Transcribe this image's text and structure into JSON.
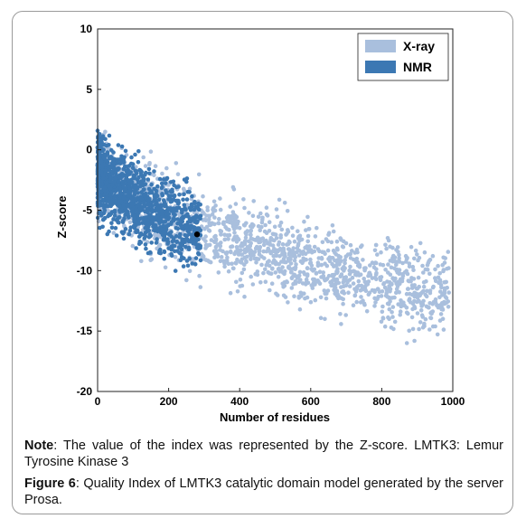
{
  "chart_data": {
    "type": "scatter",
    "xlabel": "Number of residues",
    "ylabel": "Z-score",
    "xlim": [
      0,
      1000
    ],
    "ylim": [
      -20,
      10
    ],
    "xticks": [
      0,
      200,
      400,
      600,
      800,
      1000
    ],
    "yticks": [
      10,
      5,
      0,
      -5,
      -10,
      -15,
      -20
    ],
    "grid": false,
    "legend_position": "top-right",
    "series": [
      {
        "name": "X-ray",
        "color": "#a9bfdd",
        "trend": [
          [
            20,
            -2.5
          ],
          [
            100,
            -4.0
          ],
          [
            200,
            -5.5
          ],
          [
            300,
            -6.8
          ],
          [
            400,
            -7.8
          ],
          [
            500,
            -8.7
          ],
          [
            600,
            -9.5
          ],
          [
            700,
            -10.2
          ],
          [
            800,
            -10.9
          ],
          [
            900,
            -11.5
          ],
          [
            1000,
            -12.0
          ]
        ],
        "spread_z": 3.0
      },
      {
        "name": "NMR",
        "color": "#3c78b3",
        "trend": [
          [
            5,
            -2.0
          ],
          [
            50,
            -3.0
          ],
          [
            100,
            -4.0
          ],
          [
            150,
            -5.0
          ],
          [
            200,
            -5.8
          ],
          [
            250,
            -6.5
          ]
        ],
        "spread_z": 2.8
      }
    ],
    "highlighted_point": {
      "x": 280,
      "y": -7.0,
      "color": "#000000"
    }
  },
  "note": {
    "label": "Note",
    "text": ": The value of the index was represented by the Z-score. LMTK3: Lemur Tyrosine Kinase 3"
  },
  "caption": {
    "label": "Figure 6",
    "text": ": Quality Index of LMTK3 catalytic domain model generated by the server Prosa."
  }
}
